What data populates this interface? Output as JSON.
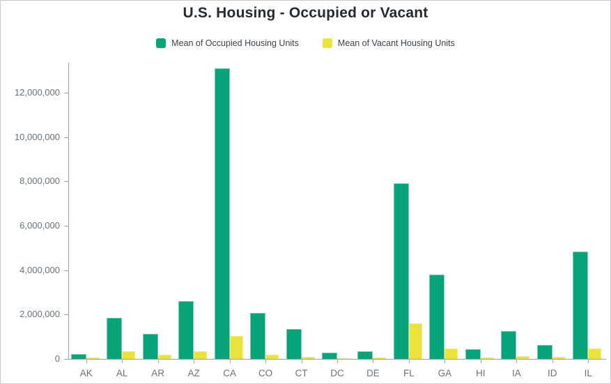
{
  "window": {
    "title": "U.S. Housing - Occupied or Vacant"
  },
  "colors": {
    "occupied": "#06a478",
    "occupied_edge": "#7fccb0",
    "vacant": "#ece23c",
    "vacant_edge": "#f2ea8e",
    "axis": "#9ba1a6",
    "tick_text": "#6a7177",
    "title_text": "#242a30",
    "legend_text": "#3a4147",
    "background": "#ffffff",
    "frame_border": "#c6cacf"
  },
  "legend": {
    "items": [
      {
        "label": "Mean of Occupied Housing Units",
        "color": "#06a478"
      },
      {
        "label": "Mean of Vacant Housing Units",
        "color": "#ece23c"
      }
    ]
  },
  "chart_data": {
    "type": "bar",
    "title": "U.S. Housing - Occupied or Vacant",
    "xlabel": "",
    "ylabel": "",
    "categories": [
      "AK",
      "AL",
      "AR",
      "AZ",
      "CA",
      "CO",
      "CT",
      "DC",
      "DE",
      "FL",
      "GA",
      "HI",
      "IA",
      "ID",
      "IL"
    ],
    "series": [
      {
        "name": "Mean of Occupied Housing Units",
        "color": "#06a478",
        "values": [
          230000,
          1850000,
          1130000,
          2600000,
          13100000,
          2080000,
          1350000,
          270000,
          350000,
          7920000,
          3800000,
          450000,
          1270000,
          630000,
          4850000
        ]
      },
      {
        "name": "Mean of Vacant Housing Units",
        "color": "#ece23c",
        "values": [
          55000,
          360000,
          185000,
          350000,
          1050000,
          190000,
          95000,
          30000,
          60000,
          1600000,
          460000,
          60000,
          125000,
          80000,
          460000
        ]
      }
    ],
    "ylim": [
      0,
      13350000
    ],
    "yticks": [
      0,
      2000000,
      4000000,
      6000000,
      8000000,
      10000000,
      12000000
    ],
    "grid": false,
    "legend_position": "top"
  }
}
